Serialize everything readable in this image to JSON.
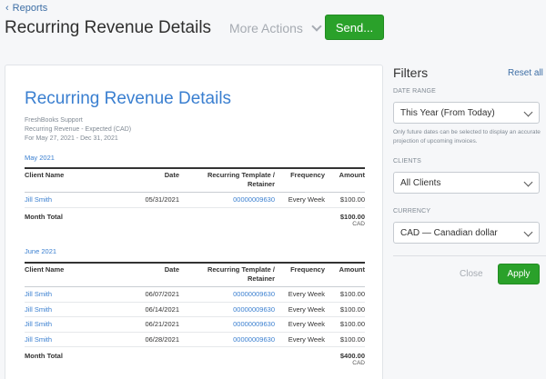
{
  "header": {
    "back_label": "Reports",
    "back_icon": "chevron-left-icon",
    "title": "Recurring Revenue Details",
    "more_actions_label": "More Actions",
    "send_label": "Send..."
  },
  "report": {
    "title": "Recurring Revenue Details",
    "company": "FreshBooks Support",
    "subtitle": "Recurring Revenue - Expected (CAD)",
    "period": "For May 27, 2021 - Dec 31, 2021",
    "columns": {
      "client": "Client Name",
      "date": "Date",
      "template": "Recurring Template / Retainer",
      "frequency": "Frequency",
      "amount": "Amount"
    },
    "sections": [
      {
        "label": "May 2021",
        "rows": [
          {
            "client": "Jill Smith",
            "date": "05/31/2021",
            "template": "00000009630",
            "frequency": "Every Week",
            "amount": "$100.00"
          }
        ],
        "total_label": "Month Total",
        "total_amount": "$100.00",
        "total_currency": "CAD"
      },
      {
        "label": "June 2021",
        "rows": [
          {
            "client": "Jill Smith",
            "date": "06/07/2021",
            "template": "00000009630",
            "frequency": "Every Week",
            "amount": "$100.00"
          },
          {
            "client": "Jill Smith",
            "date": "06/14/2021",
            "template": "00000009630",
            "frequency": "Every Week",
            "amount": "$100.00"
          },
          {
            "client": "Jill Smith",
            "date": "06/21/2021",
            "template": "00000009630",
            "frequency": "Every Week",
            "amount": "$100.00"
          },
          {
            "client": "Jill Smith",
            "date": "06/28/2021",
            "template": "00000009630",
            "frequency": "Every Week",
            "amount": "$100.00"
          }
        ],
        "total_label": "Month Total",
        "total_amount": "$400.00",
        "total_currency": "CAD"
      }
    ]
  },
  "filters": {
    "title": "Filters",
    "reset_label": "Reset all",
    "date_range": {
      "label": "DATE RANGE",
      "value": "This Year (From Today)",
      "hint": "Only future dates can be selected to display an accurate projection of upcoming invoices."
    },
    "clients": {
      "label": "CLIENTS",
      "value": "All Clients"
    },
    "currency": {
      "label": "CURRENCY",
      "value": "CAD — Canadian dollar"
    },
    "close_label": "Close",
    "apply_label": "Apply"
  },
  "colors": {
    "accent_green": "#2aa12a",
    "link_blue": "#3a7fd0",
    "muted_gray": "#a6abb2"
  }
}
